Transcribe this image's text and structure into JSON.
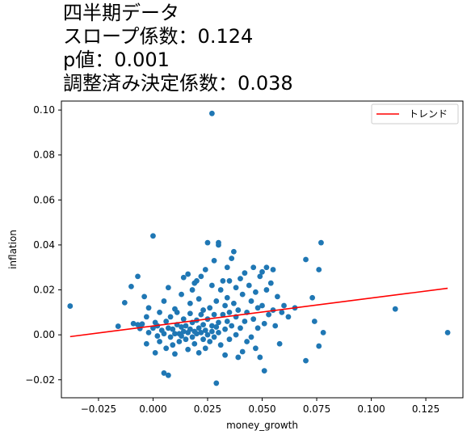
{
  "chart_data": {
    "type": "scatter",
    "title_lines": [
      "四半期データ",
      "スロープ係数：0.124",
      "p値：0.001",
      "調整済み決定係数：0.038"
    ],
    "xlabel": "money_growth",
    "ylabel": "inflation",
    "xlim": [
      -0.042,
      0.142
    ],
    "ylim": [
      -0.028,
      0.104
    ],
    "x_ticks": [
      -0.025,
      0.0,
      0.025,
      0.05,
      0.075,
      0.1,
      0.125
    ],
    "x_tick_labels": [
      "−0.025",
      "0.000",
      "0.025",
      "0.050",
      "0.075",
      "0.100",
      "0.125"
    ],
    "y_ticks": [
      -0.02,
      0.0,
      0.02,
      0.04,
      0.06,
      0.08,
      0.1
    ],
    "y_tick_labels": [
      "−0.02",
      "0.00",
      "0.02",
      "0.04",
      "0.06",
      "0.08",
      "0.10"
    ],
    "legend": {
      "position": "top-right",
      "entries": [
        "トレンド"
      ]
    },
    "colors": {
      "points": "#1f77b4",
      "trend": "#ff0000"
    },
    "trend_line": {
      "x": [
        -0.038,
        0.135
      ],
      "y": [
        -0.0008,
        0.0207
      ]
    },
    "points": [
      [
        0.027,
        0.0985
      ],
      [
        -0.038,
        0.0128
      ],
      [
        -0.016,
        0.0038
      ],
      [
        -0.013,
        0.0143
      ],
      [
        -0.01,
        0.0215
      ],
      [
        -0.009,
        0.005
      ],
      [
        -0.007,
        0.026
      ],
      [
        -0.007,
        0.0045
      ],
      [
        -0.006,
        0.0028
      ],
      [
        -0.005,
        0.0048
      ],
      [
        -0.004,
        0.017
      ],
      [
        -0.003,
        0.008
      ],
      [
        -0.003,
        -0.004
      ],
      [
        -0.002,
        0.001
      ],
      [
        -0.002,
        0.012
      ],
      [
        0.0,
        0.044
      ],
      [
        0.0,
        0.003
      ],
      [
        0.001,
        0.0055
      ],
      [
        0.001,
        -0.008
      ],
      [
        0.002,
        0.004
      ],
      [
        0.002,
        -0.0005
      ],
      [
        0.003,
        0.01
      ],
      [
        0.003,
        -0.003
      ],
      [
        0.004,
        0.002
      ],
      [
        0.005,
        0.015
      ],
      [
        0.005,
        -0.017
      ],
      [
        0.005,
        0.0005
      ],
      [
        0.006,
        0.006
      ],
      [
        0.006,
        -0.006
      ],
      [
        0.007,
        0.021
      ],
      [
        0.007,
        0.003
      ],
      [
        0.007,
        -0.018
      ],
      [
        0.008,
        0.008
      ],
      [
        0.008,
        -0.001
      ],
      [
        0.009,
        0.0025
      ],
      [
        0.009,
        -0.0045
      ],
      [
        0.01,
        0.0115
      ],
      [
        0.01,
        0.0005
      ],
      [
        0.01,
        -0.0085
      ],
      [
        0.011,
        0.0045
      ],
      [
        0.011,
        0.01
      ],
      [
        0.012,
        0.0005
      ],
      [
        0.012,
        -0.003
      ],
      [
        0.013,
        0.0035
      ],
      [
        0.013,
        0.018
      ],
      [
        0.013,
        -0.0005
      ],
      [
        0.014,
        0.007
      ],
      [
        0.014,
        0.0255
      ],
      [
        0.014,
        0.0015
      ],
      [
        0.015,
        -0.002
      ],
      [
        0.015,
        0.004
      ],
      [
        0.016,
        0.027
      ],
      [
        0.016,
        0.001
      ],
      [
        0.016,
        -0.0065
      ],
      [
        0.017,
        0.0095
      ],
      [
        0.017,
        0.0025
      ],
      [
        0.017,
        0.014
      ],
      [
        0.018,
        -0.001
      ],
      [
        0.018,
        0.02
      ],
      [
        0.018,
        0.0055
      ],
      [
        0.019,
        0.0015
      ],
      [
        0.019,
        0.023
      ],
      [
        0.019,
        -0.004
      ],
      [
        0.02,
        0.0065
      ],
      [
        0.02,
        0.024
      ],
      [
        0.02,
        0.0005
      ],
      [
        0.021,
        0.003
      ],
      [
        0.021,
        -0.008
      ],
      [
        0.021,
        0.016
      ],
      [
        0.022,
        0.001
      ],
      [
        0.022,
        0.009
      ],
      [
        0.022,
        0.026
      ],
      [
        0.023,
        -0.002
      ],
      [
        0.023,
        0.0045
      ],
      [
        0.023,
        0.011
      ],
      [
        0.024,
        0.002
      ],
      [
        0.024,
        0.029
      ],
      [
        0.024,
        -0.006
      ],
      [
        0.025,
        0.041
      ],
      [
        0.025,
        0.007
      ],
      [
        0.025,
        0.0
      ],
      [
        0.026,
        0.012
      ],
      [
        0.026,
        -0.003
      ],
      [
        0.027,
        0.004
      ],
      [
        0.027,
        0.022
      ],
      [
        0.027,
        0.0015
      ],
      [
        0.028,
        0.033
      ],
      [
        0.028,
        0.009
      ],
      [
        0.028,
        -0.001
      ],
      [
        0.029,
        0.0035
      ],
      [
        0.029,
        0.015
      ],
      [
        0.029,
        -0.0215
      ],
      [
        0.03,
        0.04
      ],
      [
        0.03,
        0.041
      ],
      [
        0.03,
        0.0055
      ],
      [
        0.03,
        0.001
      ],
      [
        0.031,
        0.02
      ],
      [
        0.031,
        -0.0045
      ],
      [
        0.032,
        0.009
      ],
      [
        0.032,
        0.024
      ],
      [
        0.033,
        0.0025
      ],
      [
        0.033,
        0.013
      ],
      [
        0.033,
        -0.009
      ],
      [
        0.034,
        0.006
      ],
      [
        0.034,
        0.03
      ],
      [
        0.034,
        0.0165
      ],
      [
        0.035,
        -0.002
      ],
      [
        0.035,
        0.01
      ],
      [
        0.035,
        0.024
      ],
      [
        0.036,
        0.034
      ],
      [
        0.036,
        0.004
      ],
      [
        0.037,
        0.037
      ],
      [
        0.037,
        0.014
      ],
      [
        0.038,
        0.0
      ],
      [
        0.038,
        0.008
      ],
      [
        0.038,
        0.021
      ],
      [
        0.039,
        -0.01
      ],
      [
        0.039,
        0.011
      ],
      [
        0.04,
        0.025
      ],
      [
        0.04,
        0.003
      ],
      [
        0.041,
        0.018
      ],
      [
        0.041,
        -0.0075
      ],
      [
        0.042,
        0.006
      ],
      [
        0.042,
        0.0275
      ],
      [
        0.043,
        0.01
      ],
      [
        0.043,
        -0.003
      ],
      [
        0.044,
        0.022
      ],
      [
        0.045,
        0.015
      ],
      [
        0.045,
        -0.001
      ],
      [
        0.046,
        0.03
      ],
      [
        0.046,
        0.007
      ],
      [
        0.047,
        -0.006
      ],
      [
        0.047,
        0.019
      ],
      [
        0.048,
        0.012
      ],
      [
        0.048,
        0.003
      ],
      [
        0.049,
        0.026
      ],
      [
        0.049,
        -0.01
      ],
      [
        0.05,
        0.028
      ],
      [
        0.05,
        0.013
      ],
      [
        0.051,
        -0.016
      ],
      [
        0.051,
        0.005
      ],
      [
        0.052,
        0.03
      ],
      [
        0.052,
        0.02
      ],
      [
        0.053,
        0.009
      ],
      [
        0.054,
        0.023
      ],
      [
        0.055,
        0.029
      ],
      [
        0.055,
        0.011
      ],
      [
        0.056,
        0.004
      ],
      [
        0.057,
        0.017
      ],
      [
        0.058,
        -0.004
      ],
      [
        0.059,
        0.01
      ],
      [
        0.06,
        0.013
      ],
      [
        0.062,
        0.008
      ],
      [
        0.065,
        0.012
      ],
      [
        0.07,
        0.0335
      ],
      [
        0.07,
        -0.0115
      ],
      [
        0.073,
        0.0165
      ],
      [
        0.074,
        0.006
      ],
      [
        0.076,
        0.029
      ],
      [
        0.076,
        -0.005
      ],
      [
        0.077,
        0.041
      ],
      [
        0.078,
        0.001
      ],
      [
        0.111,
        0.0115
      ],
      [
        0.135,
        0.001
      ]
    ]
  }
}
